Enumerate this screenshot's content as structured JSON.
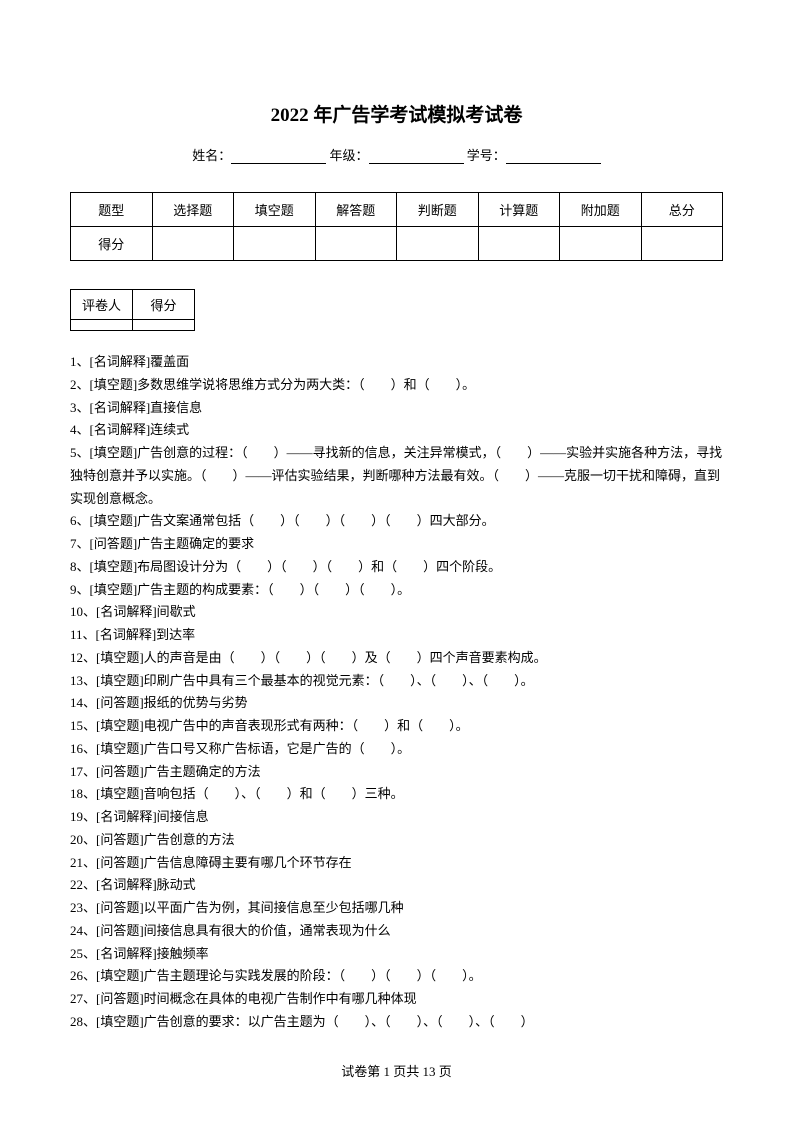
{
  "title": "2022 年广告学考试模拟考试卷",
  "infoLine": {
    "nameLabel": "姓名：",
    "gradeLabel": " 年级：",
    "idLabel": " 学号：",
    "colon": "："
  },
  "scoreTable": {
    "row1": [
      "题型",
      "选择题",
      "填空题",
      "解答题",
      "判断题",
      "计算题",
      "附加题",
      "总分"
    ],
    "row2": [
      "得分",
      "",
      "",
      "",
      "",
      "",
      "",
      ""
    ]
  },
  "graderTable": {
    "row1": [
      "评卷人",
      "得分"
    ],
    "row2": [
      "",
      ""
    ]
  },
  "questions": [
    "1、[名词解释]覆盖面",
    "2、[填空题]多数思维学说将思维方式分为两大类：（　　）和（　　）。",
    "3、[名词解释]直接信息",
    "4、[名词解释]连续式",
    "5、[填空题]广告创意的过程：（　　）——寻找新的信息，关注异常模式，（　　）——实验并实施各种方法，寻找独特创意并予以实施。（　　）——评估实验结果，判断哪种方法最有效。（　　）——克服一切干扰和障碍，直到实现创意概念。",
    "6、[填空题]广告文案通常包括（　　）（　　）（　　）（　　）四大部分。",
    "7、[问答题]广告主题确定的要求",
    "8、[填空题]布局图设计分为（　　）（　　）（　　）和（　　）四个阶段。",
    "9、[填空题]广告主题的构成要素：（　　）（　　）（　　）。",
    "10、[名词解释]间歇式",
    "11、[名词解释]到达率",
    "12、[填空题]人的声音是由（　　）（　　）（　　）及（　　）四个声音要素构成。",
    "13、[填空题]印刷广告中具有三个最基本的视觉元素：（　　）、（　　）、（　　）。",
    "14、[问答题]报纸的优势与劣势",
    "15、[填空题]电视广告中的声音表现形式有两种：（　　）和（　　）。",
    "16、[填空题]广告口号又称广告标语，它是广告的（　　）。",
    "17、[问答题]广告主题确定的方法",
    "18、[填空题]音响包括（　　）、（　　）和（　　）三种。",
    "19、[名词解释]间接信息",
    "20、[问答题]广告创意的方法",
    "21、[问答题]广告信息障碍主要有哪几个环节存在",
    "22、[名词解释]脉动式",
    "23、[问答题]以平面广告为例，其间接信息至少包括哪几种",
    "24、[问答题]间接信息具有很大的价值，通常表现为什么",
    "25、[名词解释]接触频率",
    "26、[填空题]广告主题理论与实践发展的阶段：（　　）（　　）（　　）。",
    "27、[问答题]时间概念在具体的电视广告制作中有哪几种体现",
    "28、[填空题]广告创意的要求：以广告主题为（　　）、（　　）、（　　）、（　　）"
  ],
  "footer": {
    "prefix": "试卷第 ",
    "currentPage": "1",
    "middle": " 页共 ",
    "totalPages": "13",
    "suffix": " 页"
  }
}
